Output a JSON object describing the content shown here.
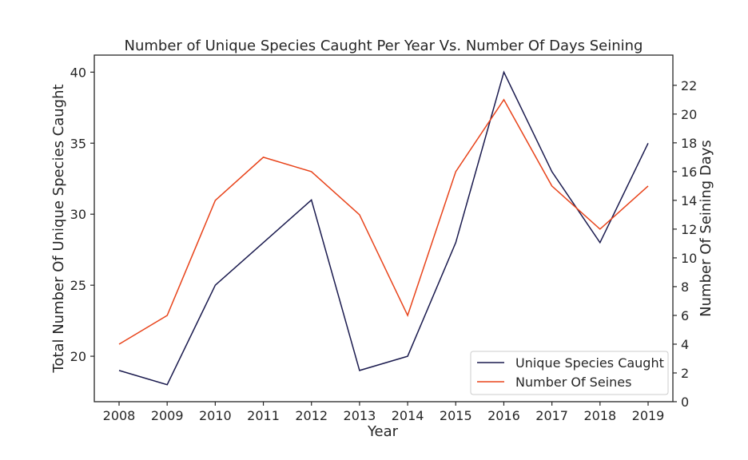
{
  "chart_data": {
    "type": "line",
    "title": "Number of Unique Species Caught Per Year Vs. Number Of Days Seining",
    "xlabel": "Year",
    "ylabel_left": "Total Number Of Unique Species Caught",
    "ylabel_right": "Number Of Seining Days",
    "categories": [
      "2008",
      "2009",
      "2010",
      "2011",
      "2012",
      "2013",
      "2014",
      "2015",
      "2016",
      "2017",
      "2018",
      "2019"
    ],
    "series": [
      {
        "name": "Unique Species Caught",
        "axis": "left",
        "color": "#1a1a4e",
        "values": [
          19,
          18,
          25,
          28,
          31,
          19,
          20,
          28,
          40,
          33,
          28,
          35
        ]
      },
      {
        "name": "Number Of Seines",
        "axis": "right",
        "color": "#e8431a",
        "values": [
          4,
          6,
          14,
          17,
          16,
          13,
          6,
          16,
          21,
          15,
          12,
          15
        ]
      }
    ],
    "ylim_left": [
      16.8,
      41.2
    ],
    "yticks_left": [
      20,
      25,
      30,
      35,
      40
    ],
    "ylim_right": [
      0,
      24.1
    ],
    "yticks_right": [
      0,
      2,
      4,
      6,
      8,
      10,
      12,
      14,
      16,
      18,
      20,
      22
    ],
    "grid": false,
    "legend_position": "lower-right"
  }
}
